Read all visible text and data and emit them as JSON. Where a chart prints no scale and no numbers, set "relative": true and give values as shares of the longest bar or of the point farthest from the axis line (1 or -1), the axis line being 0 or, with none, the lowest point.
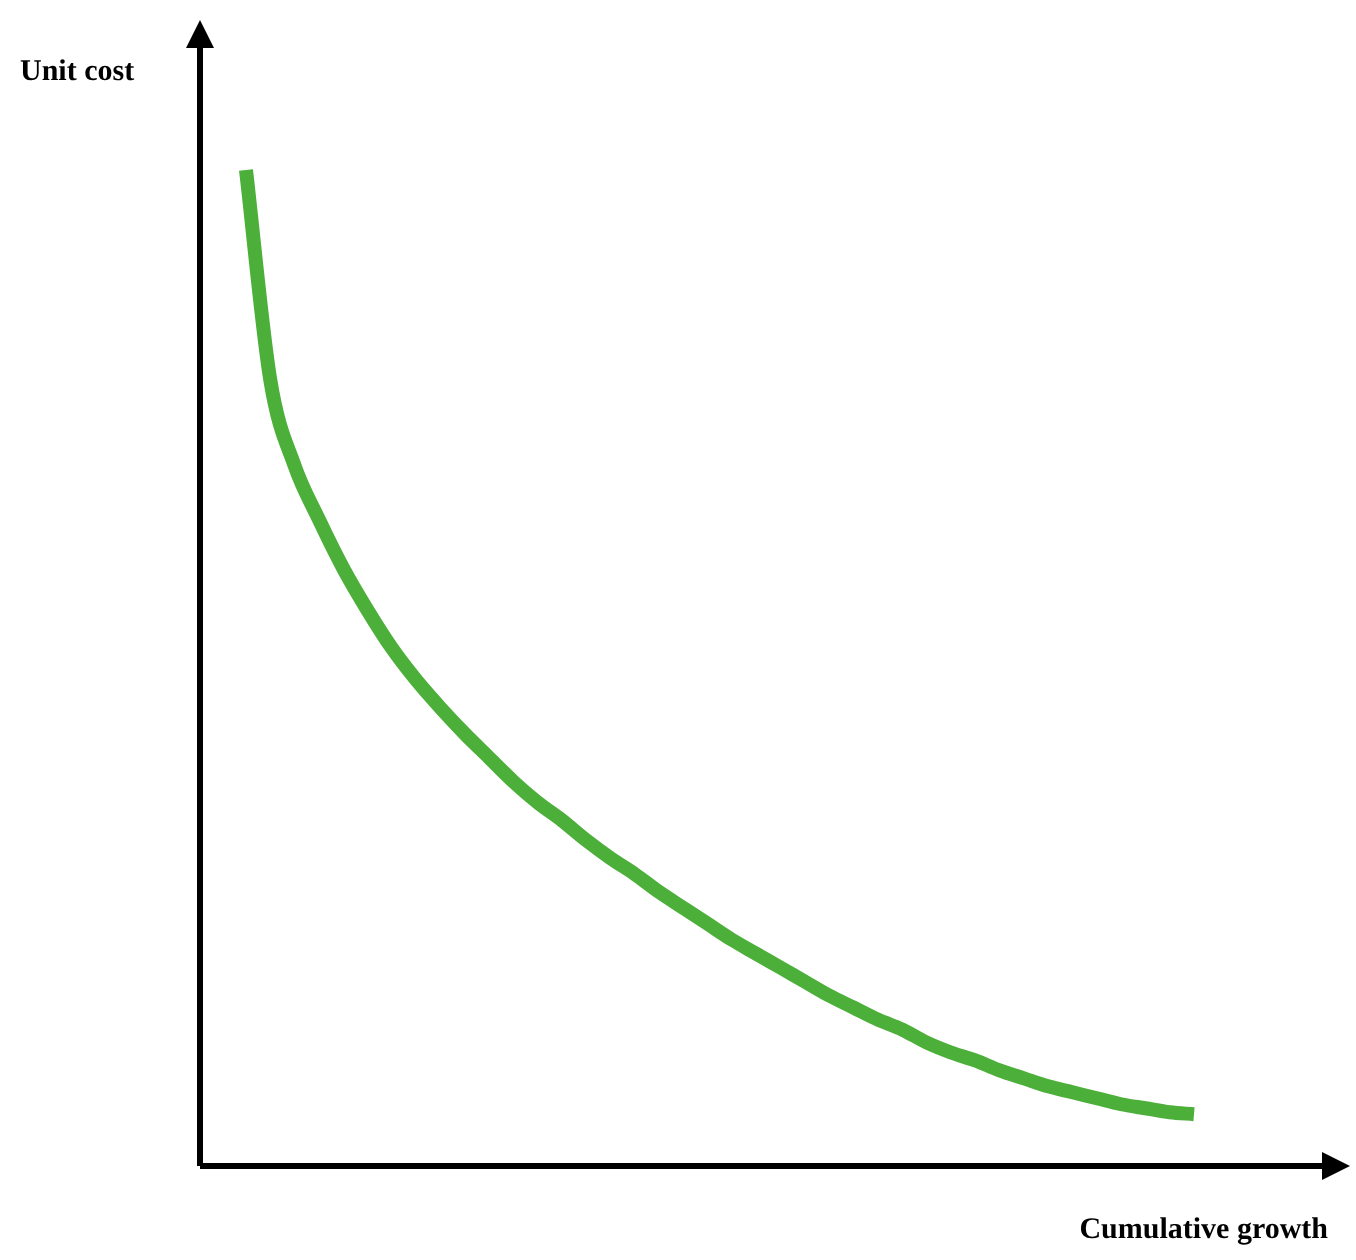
{
  "chart_data": {
    "type": "line",
    "relative": true,
    "xlabel": "Cumulative growth",
    "ylabel": "Unit cost",
    "categories": [
      null,
      null,
      null,
      null,
      null,
      null,
      null,
      null,
      null,
      null,
      null,
      null,
      null,
      null,
      null,
      null,
      null,
      null,
      null,
      null,
      null,
      null,
      null,
      null,
      null,
      null,
      null,
      null,
      null,
      null,
      null,
      null,
      null,
      null,
      null,
      null,
      null,
      null,
      null,
      null
    ],
    "series": [
      {
        "color": "#4caf3a",
        "values": [
          1,
          0.789,
          0.703,
          0.649,
          0.6,
          0.558,
          0.52,
          0.488,
          0.46,
          0.434,
          0.41,
          0.386,
          0.365,
          0.347,
          0.327,
          0.309,
          0.293,
          0.275,
          0.259,
          0.243,
          0.227,
          0.213,
          0.199,
          0.185,
          0.171,
          0.159,
          0.147,
          0.137,
          0.124,
          0.114,
          0.106,
          0.096,
          0.088,
          0.08,
          0.074,
          0.068,
          0.062,
          0.058,
          0.054,
          0.052
        ]
      }
    ],
    "legend": false,
    "grid": false,
    "marker": "none",
    "line_style": "solid"
  }
}
